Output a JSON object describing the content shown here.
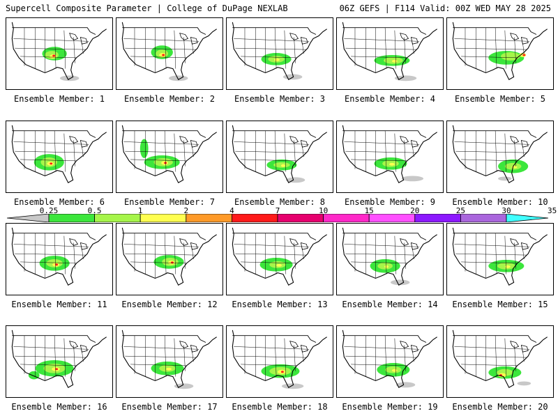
{
  "header": {
    "left_title": "Supercell Composite Parameter | College of DuPage NEXLAB",
    "right_title": "06Z GEFS | F114 Valid: 00Z WED MAY 28 2025"
  },
  "colorbar": {
    "levels": [
      "0.25",
      "0.5",
      "1",
      "2",
      "4",
      "7",
      "10",
      "15",
      "20",
      "25",
      "30",
      "35"
    ],
    "colors": [
      "#c8c8c8",
      "#3ce63c",
      "#a6f54a",
      "#ffff50",
      "#ff9a28",
      "#ff1a1a",
      "#e6006e",
      "#ff28c8",
      "#ff50ff",
      "#8c18ff",
      "#aa66dd",
      "#40ffff"
    ]
  },
  "members": [
    {
      "label": "Ensemble Member: 1"
    },
    {
      "label": "Ensemble Member: 2"
    },
    {
      "label": "Ensemble Member: 3"
    },
    {
      "label": "Ensemble Member: 4"
    },
    {
      "label": "Ensemble Member: 5"
    },
    {
      "label": "Ensemble Member: 6"
    },
    {
      "label": "Ensemble Member: 7"
    },
    {
      "label": "Ensemble Member: 8"
    },
    {
      "label": "Ensemble Member: 9"
    },
    {
      "label": "Ensemble Member: 10"
    },
    {
      "label": "Ensemble Member: 11"
    },
    {
      "label": "Ensemble Member: 12"
    },
    {
      "label": "Ensemble Member: 13"
    },
    {
      "label": "Ensemble Member: 14"
    },
    {
      "label": "Ensemble Member: 15"
    },
    {
      "label": "Ensemble Member: 16"
    },
    {
      "label": "Ensemble Member: 17"
    },
    {
      "label": "Ensemble Member: 18"
    },
    {
      "label": "Ensemble Member: 19"
    },
    {
      "label": "Ensemble Member: 20"
    }
  ]
}
